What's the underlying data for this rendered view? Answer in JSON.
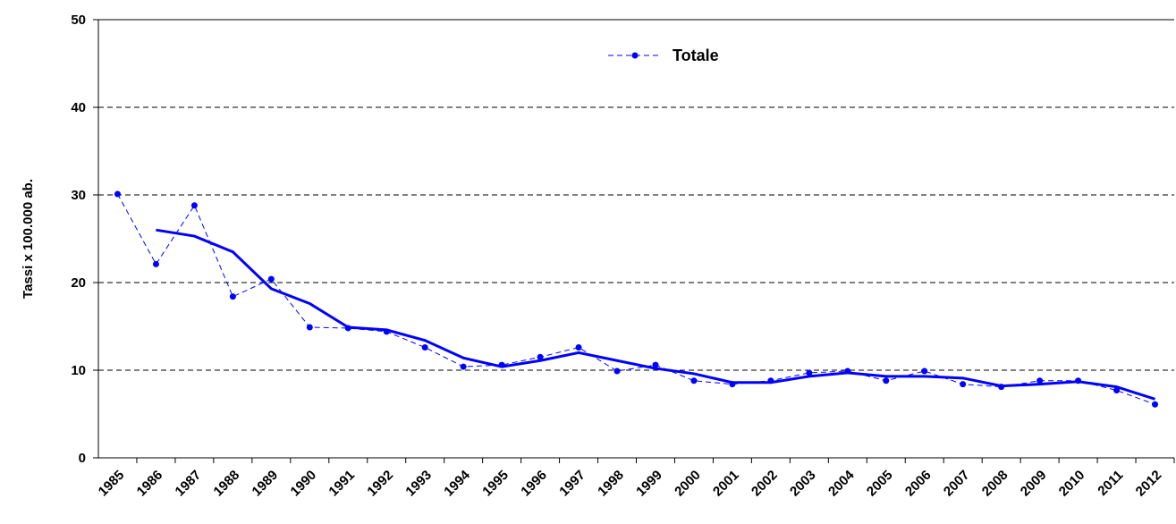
{
  "chart_data": {
    "type": "line",
    "y_label": "Tassi x 100.000 ab.",
    "categories": [
      "1985",
      "1986",
      "1987",
      "1988",
      "1989",
      "1990",
      "1991",
      "1992",
      "1993",
      "1994",
      "1995",
      "1996",
      "1997",
      "1998",
      "1999",
      "2000",
      "2001",
      "2002",
      "2003",
      "2004",
      "2005",
      "2006",
      "2007",
      "2008",
      "2009",
      "2010",
      "2011",
      "2012"
    ],
    "series": [
      {
        "name": "Totale",
        "color": "#0000ff",
        "style": "dashed-markers",
        "values": [
          30.1,
          22.1,
          28.8,
          18.4,
          20.4,
          14.9,
          14.8,
          14.4,
          12.6,
          10.4,
          10.6,
          11.5,
          12.6,
          9.9,
          10.6,
          8.8,
          8.4,
          8.8,
          9.7,
          9.9,
          8.8,
          9.9,
          8.4,
          8.1,
          8.8,
          8.8,
          7.7,
          6.1
        ]
      },
      {
        "color": "#0000ff",
        "style": "solid",
        "values": [
          null,
          26.0,
          25.3,
          23.5,
          19.3,
          17.6,
          14.9,
          14.6,
          13.4,
          11.4,
          10.4,
          11.1,
          12.0,
          11.1,
          10.2,
          9.6,
          8.6,
          8.6,
          9.3,
          9.7,
          9.3,
          9.3,
          9.1,
          8.2,
          8.4,
          8.7,
          8.1,
          6.7
        ]
      }
    ],
    "ylim": [
      0,
      50
    ],
    "yticks": [
      0,
      10,
      20,
      30,
      40,
      50
    ],
    "grid": true,
    "legend": "top"
  }
}
